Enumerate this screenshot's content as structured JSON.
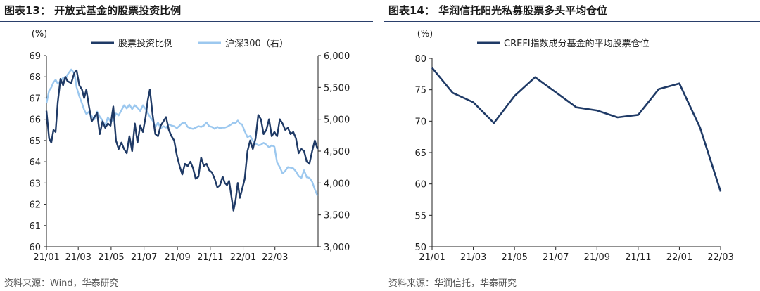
{
  "colors": {
    "navy": "#1f3a66",
    "lightblue": "#9cc8ef",
    "rule": "#2a3f6b"
  },
  "left": {
    "title": "图表13：  开放式基金的股票投资比例",
    "source": "资料来源：Wind，华泰研究",
    "chart_data": {
      "type": "line",
      "unit_left": "(%)",
      "x_ticks": [
        "21/01",
        "21/03",
        "21/05",
        "21/07",
        "21/09",
        "21/11",
        "22/01",
        "22/03"
      ],
      "x_start": "2021-01-01",
      "x_end": "2022-05-20",
      "y_left_lim": [
        60,
        69
      ],
      "y_left_ticks": [
        "60",
        "61",
        "62",
        "63",
        "64",
        "65",
        "66",
        "67",
        "68",
        "69"
      ],
      "y_right_lim": [
        3000,
        6000
      ],
      "y_right_ticks": [
        "3,000",
        "3,500",
        "4,000",
        "4,500",
        "5,000",
        "5,500",
        "6,000"
      ],
      "legend_position": "top",
      "series": [
        {
          "name": "股票投资比例",
          "axis": "left",
          "color": "#1f3a66",
          "x": [
            "2021-01-01",
            "2021-01-06",
            "2021-01-10",
            "2021-01-14",
            "2021-01-18",
            "2021-01-22",
            "2021-01-27",
            "2021-02-01",
            "2021-02-05",
            "2021-02-09",
            "2021-02-16",
            "2021-02-22",
            "2021-02-26",
            "2021-03-03",
            "2021-03-08",
            "2021-03-12",
            "2021-03-16",
            "2021-03-21",
            "2021-03-26",
            "2021-03-31",
            "2021-04-05",
            "2021-04-10",
            "2021-04-15",
            "2021-04-20",
            "2021-04-25",
            "2021-04-30",
            "2021-05-05",
            "2021-05-10",
            "2021-05-15",
            "2021-05-20",
            "2021-05-25",
            "2021-05-30",
            "2021-06-04",
            "2021-06-09",
            "2021-06-14",
            "2021-06-19",
            "2021-06-24",
            "2021-06-29",
            "2021-07-04",
            "2021-07-08",
            "2021-07-12",
            "2021-07-17",
            "2021-07-22",
            "2021-07-27",
            "2021-08-01",
            "2021-08-06",
            "2021-08-11",
            "2021-08-16",
            "2021-08-21",
            "2021-08-26",
            "2021-08-31",
            "2021-09-05",
            "2021-09-10",
            "2021-09-15",
            "2021-09-20",
            "2021-09-25",
            "2021-09-30",
            "2021-10-05",
            "2021-10-10",
            "2021-10-15",
            "2021-10-20",
            "2021-10-25",
            "2021-10-30",
            "2021-11-04",
            "2021-11-09",
            "2021-11-14",
            "2021-11-19",
            "2021-11-24",
            "2021-11-28",
            "2021-12-02",
            "2021-12-06",
            "2021-12-10",
            "2021-12-14",
            "2021-12-18",
            "2021-12-22",
            "2021-12-26",
            "2021-12-30",
            "2022-01-04",
            "2022-01-09",
            "2022-01-14",
            "2022-01-19",
            "2022-01-24",
            "2022-01-29",
            "2022-02-03",
            "2022-02-08",
            "2022-02-13",
            "2022-02-18",
            "2022-02-23",
            "2022-02-28",
            "2022-03-05",
            "2022-03-10",
            "2022-03-15",
            "2022-03-20",
            "2022-03-25",
            "2022-03-30",
            "2022-04-04",
            "2022-04-09",
            "2022-04-14",
            "2022-04-19",
            "2022-04-24",
            "2022-04-29",
            "2022-05-04",
            "2022-05-09",
            "2022-05-14",
            "2022-05-19"
          ],
          "y": [
            66.4,
            65.1,
            64.9,
            65.5,
            65.4,
            66.8,
            67.9,
            67.6,
            68.0,
            67.8,
            67.7,
            68.2,
            68.3,
            67.6,
            67.4,
            67.0,
            67.4,
            66.6,
            65.9,
            66.1,
            66.3,
            65.3,
            65.9,
            65.6,
            65.8,
            65.7,
            66.6,
            65.0,
            64.6,
            64.9,
            64.6,
            64.4,
            65.2,
            64.5,
            65.8,
            64.9,
            65.7,
            65.4,
            66.1,
            66.9,
            67.4,
            66.2,
            65.3,
            65.2,
            65.7,
            65.9,
            66.1,
            65.5,
            65.2,
            65.0,
            64.3,
            63.8,
            63.4,
            63.9,
            63.8,
            64.0,
            63.7,
            63.2,
            63.3,
            64.2,
            63.8,
            63.9,
            63.6,
            63.5,
            63.2,
            62.8,
            62.9,
            63.3,
            63.0,
            62.9,
            63.1,
            62.4,
            61.7,
            62.2,
            63.0,
            62.3,
            62.7,
            63.2,
            64.5,
            65.0,
            64.6,
            65.1,
            66.2,
            66.0,
            65.3,
            65.5,
            66.0,
            65.2,
            65.4,
            65.2,
            66.0,
            65.8,
            65.5,
            65.6,
            65.3,
            65.4,
            65.1,
            64.4,
            64.6,
            64.5,
            64.0,
            63.9,
            64.5,
            65.0,
            64.6
          ]
        },
        {
          "name": "沪深300（右）",
          "axis": "right",
          "color": "#9cc8ef",
          "x": [
            "2021-01-01",
            "2021-01-06",
            "2021-01-10",
            "2021-01-14",
            "2021-01-18",
            "2021-01-22",
            "2021-01-27",
            "2021-02-01",
            "2021-02-05",
            "2021-02-09",
            "2021-02-16",
            "2021-02-22",
            "2021-02-26",
            "2021-03-03",
            "2021-03-08",
            "2021-03-12",
            "2021-03-16",
            "2021-03-21",
            "2021-03-26",
            "2021-03-31",
            "2021-04-05",
            "2021-04-10",
            "2021-04-15",
            "2021-04-20",
            "2021-04-25",
            "2021-04-30",
            "2021-05-05",
            "2021-05-10",
            "2021-05-15",
            "2021-05-20",
            "2021-05-25",
            "2021-05-30",
            "2021-06-04",
            "2021-06-09",
            "2021-06-14",
            "2021-06-19",
            "2021-06-24",
            "2021-06-29",
            "2021-07-04",
            "2021-07-08",
            "2021-07-12",
            "2021-07-17",
            "2021-07-22",
            "2021-07-27",
            "2021-08-01",
            "2021-08-06",
            "2021-08-11",
            "2021-08-16",
            "2021-08-21",
            "2021-08-26",
            "2021-08-31",
            "2021-09-05",
            "2021-09-10",
            "2021-09-15",
            "2021-09-20",
            "2021-09-25",
            "2021-09-30",
            "2021-10-05",
            "2021-10-10",
            "2021-10-15",
            "2021-10-20",
            "2021-10-25",
            "2021-10-30",
            "2021-11-04",
            "2021-11-09",
            "2021-11-14",
            "2021-11-19",
            "2021-11-24",
            "2021-11-28",
            "2021-12-02",
            "2021-12-06",
            "2021-12-10",
            "2021-12-14",
            "2021-12-18",
            "2021-12-22",
            "2021-12-26",
            "2021-12-30",
            "2022-01-04",
            "2022-01-09",
            "2022-01-14",
            "2022-01-19",
            "2022-01-24",
            "2022-01-29",
            "2022-02-03",
            "2022-02-08",
            "2022-02-13",
            "2022-02-18",
            "2022-02-23",
            "2022-02-28",
            "2022-03-05",
            "2022-03-10",
            "2022-03-15",
            "2022-03-20",
            "2022-03-25",
            "2022-03-30",
            "2022-04-04",
            "2022-04-09",
            "2022-04-14",
            "2022-04-19",
            "2022-04-24",
            "2022-04-29",
            "2022-05-04",
            "2022-05-09",
            "2022-05-14",
            "2022-05-19"
          ],
          "y": [
            5250,
            5450,
            5500,
            5580,
            5620,
            5560,
            5600,
            5650,
            5620,
            5700,
            5780,
            5720,
            5500,
            5360,
            5250,
            5150,
            5080,
            5120,
            5050,
            5000,
            5120,
            5040,
            4980,
            4900,
            5030,
            4960,
            4990,
            5090,
            5060,
            5140,
            5220,
            5170,
            5230,
            5160,
            5220,
            5180,
            5130,
            5220,
            5160,
            5100,
            5040,
            4980,
            4880,
            4950,
            4860,
            4890,
            4870,
            4920,
            4900,
            4890,
            4860,
            4900,
            4940,
            4950,
            4880,
            4860,
            4850,
            4870,
            4890,
            4880,
            4900,
            4950,
            4890,
            4880,
            4850,
            4880,
            4860,
            4870,
            4870,
            4880,
            4900,
            4920,
            4950,
            4940,
            4980,
            4930,
            4920,
            4810,
            4720,
            4740,
            4660,
            4620,
            4590,
            4600,
            4630,
            4600,
            4560,
            4590,
            4570,
            4320,
            4250,
            4150,
            4190,
            4250,
            4240,
            4230,
            4180,
            4110,
            4080,
            4200,
            4090,
            4080,
            4020,
            3900,
            3800
          ]
        }
      ]
    }
  },
  "right": {
    "title": "图表14：  华润信托阳光私募股票多头平均仓位",
    "source": "资料来源：华润信托，华泰研究",
    "chart_data": {
      "type": "line",
      "unit_left": "(%)",
      "x_ticks": [
        "21/01",
        "21/03",
        "21/05",
        "21/07",
        "21/09",
        "21/11",
        "22/01",
        "22/03"
      ],
      "y_lim": [
        50,
        80
      ],
      "y_ticks": [
        "50",
        "55",
        "60",
        "65",
        "70",
        "75",
        "80"
      ],
      "legend_position": "top-left",
      "series": [
        {
          "name": "CREFI指数成分基金的平均股票仓位",
          "color": "#1f3a66",
          "x": [
            "2021-01",
            "2021-02",
            "2021-03",
            "2021-04",
            "2021-05",
            "2021-06",
            "2021-07",
            "2021-08",
            "2021-09",
            "2021-10",
            "2021-11",
            "2021-12",
            "2022-01",
            "2022-02",
            "2022-03"
          ],
          "y": [
            78.5,
            74.5,
            73.0,
            69.7,
            74.0,
            77.0,
            74.6,
            72.2,
            71.7,
            70.6,
            71.0,
            75.1,
            76.0,
            69.0,
            58.8
          ]
        }
      ]
    }
  }
}
